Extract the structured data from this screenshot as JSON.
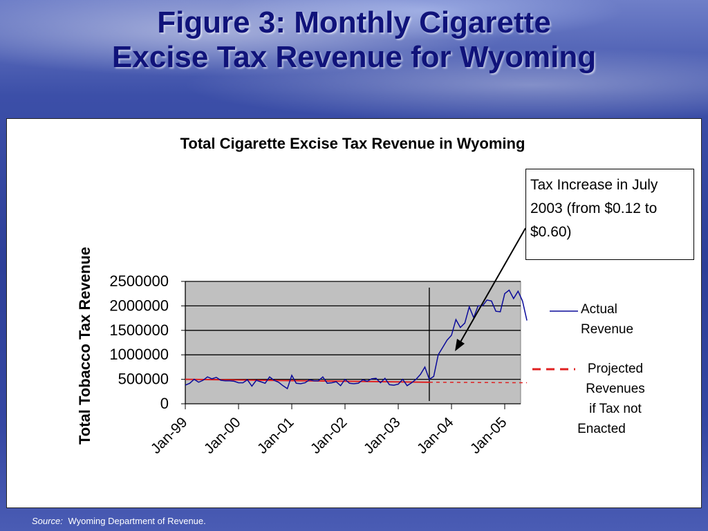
{
  "slide": {
    "title_line1": "Figure 3: Monthly Cigarette",
    "title_line2": "Excise Tax Revenue for Wyoming",
    "source_label": "Source:",
    "source_text": "Wyoming Department of Revenue."
  },
  "annotation": {
    "line1": "Tax Increase in July",
    "line2": "2003 (from $0.12 to",
    "line3": "$0.60)"
  },
  "colors": {
    "actual": "#0a0a9a",
    "projected": "#e02020",
    "plot_bg": "#c0c0c0",
    "title": "#10137a"
  },
  "chart_data": {
    "type": "line",
    "title": "Total Cigarette Excise Tax Revenue in Wyoming",
    "ylabel": "Total Tobacco Tax Revenue",
    "xlabel": "",
    "ylim": [
      0,
      2500000
    ],
    "yticks": [
      0,
      500000,
      1000000,
      1500000,
      2000000,
      2500000
    ],
    "ytick_labels": [
      "0",
      "500000",
      "1000000",
      "1500000",
      "2000000",
      "2500000"
    ],
    "xticks": [
      "Jan-99",
      "Jan-00",
      "Jan-01",
      "Jan-02",
      "Jan-03",
      "Jan-04",
      "Jan-05"
    ],
    "x_start": "Jan-99",
    "x_end": "Jun-05",
    "grid": "horizontal",
    "legend_position": "right",
    "event_marker": "Jul-03",
    "series": [
      {
        "name": "Actual Revenue",
        "style": "solid",
        "values": [
          380000,
          420000,
          500000,
          440000,
          480000,
          550000,
          510000,
          540000,
          480000,
          470000,
          470000,
          460000,
          430000,
          430000,
          490000,
          360000,
          480000,
          450000,
          420000,
          550000,
          480000,
          440000,
          370000,
          310000,
          580000,
          420000,
          410000,
          430000,
          490000,
          470000,
          470000,
          550000,
          420000,
          430000,
          450000,
          370000,
          500000,
          420000,
          410000,
          420000,
          490000,
          460000,
          510000,
          520000,
          430000,
          520000,
          390000,
          380000,
          400000,
          500000,
          370000,
          430000,
          500000,
          600000,
          750000,
          500000,
          560000,
          1000000,
          1150000,
          1300000,
          1400000,
          1720000,
          1560000,
          1650000,
          1980000,
          1760000,
          2000000,
          2000000,
          2120000,
          2100000,
          1890000,
          1880000,
          2250000,
          2320000,
          2150000,
          2300000,
          2100000,
          1700000
        ]
      },
      {
        "name": "Projected Revenues if Tax not Enacted",
        "style": "dashed",
        "fit_start": 500000,
        "fit_end": 440000,
        "projection_end": 430000
      }
    ],
    "legend": [
      {
        "label_lines": [
          "Actual",
          "Revenue"
        ]
      },
      {
        "label_lines": [
          "Projected",
          "Revenues",
          "if Tax not",
          "Enacted"
        ]
      }
    ]
  }
}
